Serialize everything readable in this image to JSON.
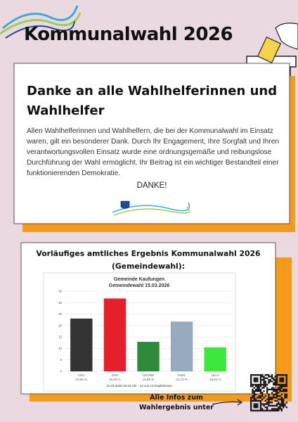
{
  "header": {
    "title": "Kommunalwahl 2026"
  },
  "thanks": {
    "heading": "Danke an alle Wahlhelferinnen und Wahlhelfer",
    "text": "Allen Wahlhelferinnen und Wahlhelfern, die bei der Kommunalwahl im Einsatz waren, gilt ein besonderer Dank. Durch Ihr Engagement, Ihre Sorgfalt und Ihren verantwortungsvollen Einsatz wurde eine ordnungsgemäße und reibungslose Durchführung der Wahl ermöglicht. Ihr Beitrag ist ein wichtiger Bestandteil einer funktionierenden Demokratie.",
    "closing": "DANKE!"
  },
  "results": {
    "heading": "Vorläufiges amtliches Ergebnis Kommunalwahl 2026 (Gemeindewahl):",
    "info": "Alle Infos zum Wahlergebnis unter",
    "chart_data": {
      "type": "bar",
      "title": "Gemeinde Kaufungen",
      "subtitle": "Gemeindewahl 15.03.2026",
      "categories": [
        "CDU",
        "SPD",
        "GRÜNE",
        "KWG",
        "ULLA"
      ],
      "values": [
        23.05,
        31.82,
        12.88,
        21.73,
        10.51
      ],
      "value_labels": [
        "23,05 %",
        "31,82 %",
        "12,88 %",
        "21,73 %",
        "10,51 %"
      ],
      "colors": [
        "#333333",
        "#e5202a",
        "#2f8a3c",
        "#97abbe",
        "#3ce83c"
      ],
      "ylim": [
        0,
        35
      ],
      "yticks": [
        0,
        5,
        10,
        15,
        20,
        25,
        30,
        35
      ],
      "grid": true,
      "note": "15.03.2026 18:43 Uhr - 13 von 13 Ergebnissen"
    }
  }
}
